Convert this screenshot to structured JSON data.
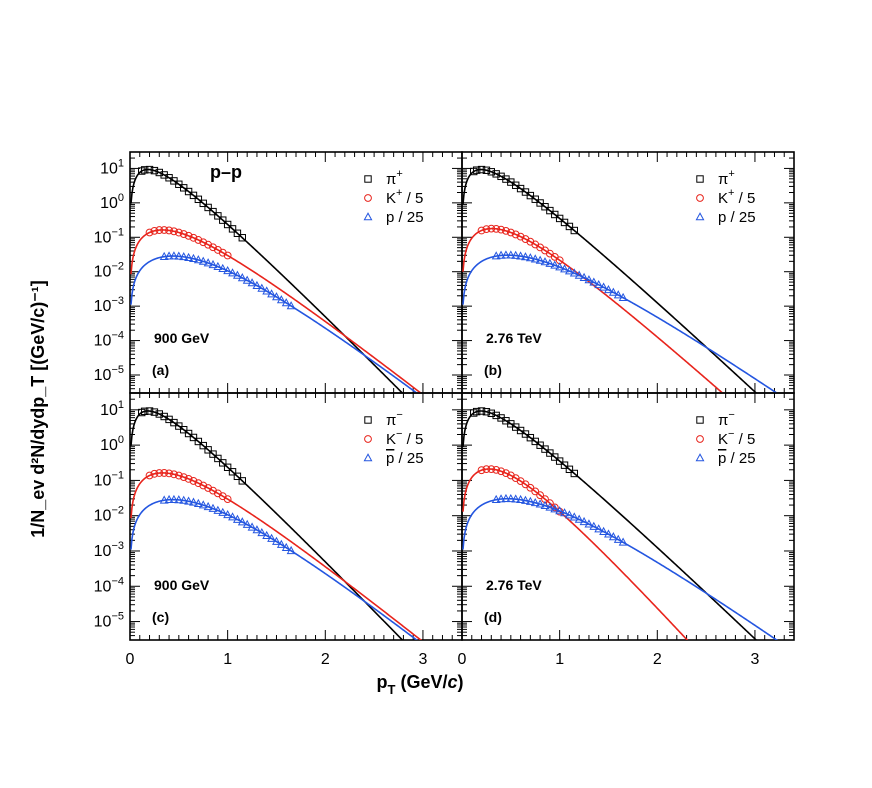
{
  "figure": {
    "system_label": "p–p",
    "x_axis_title": "p",
    "x_axis_title_sub": "T",
    "x_axis_title_unit_open": " (GeV/",
    "x_axis_title_unit_c": "c",
    "x_axis_title_unit_close": ")",
    "y_axis_title": "1/N_ev d²N/dydp_T [(GeV/c)⁻¹]",
    "x_tick_labels": [
      "0",
      "1",
      "2",
      "3"
    ],
    "y_tick_labels": [
      {
        "base": "10",
        "exp": "1"
      },
      {
        "base": "10",
        "exp": "0"
      },
      {
        "base": "10",
        "exp": "−1"
      },
      {
        "base": "10",
        "exp": "−2"
      },
      {
        "base": "10",
        "exp": "−3"
      },
      {
        "base": "10",
        "exp": "−4"
      },
      {
        "base": "10",
        "exp": "−5"
      }
    ]
  },
  "colors": {
    "pion": "#000000",
    "kaon": "#e8241c",
    "proton": "#2456e0",
    "axis": "#000000"
  },
  "chart_data": [
    {
      "type": "scatter",
      "panel": "(a)",
      "energy": "900 GeV",
      "xlabel": "p_T (GeV/c)",
      "ylabel": "1/N_ev d²N/dydp_T [(GeV/c)^-1]",
      "xlim": [
        0,
        3.4
      ],
      "ylim": [
        3e-06,
        30
      ],
      "yscale": "log",
      "legend": [
        {
          "symbol": "square",
          "particle": "π",
          "charge": "+",
          "scale": "",
          "bar": false
        },
        {
          "symbol": "circle",
          "particle": "K",
          "charge": "+",
          "scale": " / 5",
          "bar": false
        },
        {
          "symbol": "triangle",
          "particle": "p",
          "charge": "",
          "scale": "  / 25",
          "bar": false
        }
      ],
      "series": [
        {
          "name": "pi+",
          "symbol": "square",
          "color": "pion",
          "fit_params": {
            "A": 95,
            "T": 0.145,
            "m": 0.1396
          },
          "fit_x_max": 3.4,
          "x": [
            0.12,
            0.15,
            0.2,
            0.25,
            0.3,
            0.35,
            0.4,
            0.45,
            0.5,
            0.55,
            0.6,
            0.65,
            0.7,
            0.75,
            0.8,
            0.85,
            0.9,
            0.95,
            1.0,
            1.05,
            1.1,
            1.15
          ]
        },
        {
          "name": "K+/5",
          "symbol": "circle",
          "color": "kaon",
          "fit_params": {
            "A": 0.85,
            "T": 0.185,
            "m": 0.4937
          },
          "fit_x_max": 3.4,
          "x": [
            0.2,
            0.25,
            0.3,
            0.35,
            0.4,
            0.45,
            0.5,
            0.55,
            0.6,
            0.65,
            0.7,
            0.75,
            0.8,
            0.85,
            0.9,
            0.95,
            1.0
          ]
        },
        {
          "name": "p/25",
          "symbol": "triangle",
          "color": "proton",
          "fit_params": {
            "A": 0.11,
            "T": 0.185,
            "m": 0.9383
          },
          "fit_x_max": 3.4,
          "x": [
            0.35,
            0.4,
            0.45,
            0.5,
            0.55,
            0.6,
            0.65,
            0.7,
            0.75,
            0.8,
            0.85,
            0.9,
            0.95,
            1.0,
            1.05,
            1.1,
            1.15,
            1.2,
            1.25,
            1.3,
            1.35,
            1.4,
            1.45,
            1.5,
            1.55,
            1.6,
            1.65
          ]
        }
      ]
    },
    {
      "type": "scatter",
      "panel": "(b)",
      "energy": "2.76 TeV",
      "xlim": [
        0,
        3.4
      ],
      "ylim": [
        3e-06,
        30
      ],
      "yscale": "log",
      "legend": [
        {
          "symbol": "square",
          "particle": "π",
          "charge": "+",
          "scale": "",
          "bar": false
        },
        {
          "symbol": "circle",
          "particle": "K",
          "charge": "+",
          "scale": " / 5",
          "bar": false
        },
        {
          "symbol": "triangle",
          "particle": "p",
          "charge": "",
          "scale": "  / 25",
          "bar": false
        }
      ],
      "series": [
        {
          "name": "pi+",
          "symbol": "square",
          "color": "pion",
          "fit_params": {
            "A": 90,
            "T": 0.157,
            "m": 0.1396
          },
          "fit_x_max": 3.4,
          "x": [
            0.12,
            0.15,
            0.2,
            0.25,
            0.3,
            0.35,
            0.4,
            0.45,
            0.5,
            0.55,
            0.6,
            0.65,
            0.7,
            0.75,
            0.8,
            0.85,
            0.9,
            0.95,
            1.0,
            1.05,
            1.1,
            1.15
          ]
        },
        {
          "name": "K+/5",
          "symbol": "circle",
          "color": "kaon",
          "fit_params": {
            "A": 1.0,
            "T": 0.162,
            "m": 0.4937
          },
          "fit_x_max": 3.4,
          "x": [
            0.2,
            0.25,
            0.3,
            0.35,
            0.4,
            0.45,
            0.5,
            0.55,
            0.6,
            0.65,
            0.7,
            0.75,
            0.8,
            0.85,
            0.9,
            0.95,
            1.0
          ]
        },
        {
          "name": "p/25",
          "symbol": "triangle",
          "color": "proton",
          "fit_params": {
            "A": 0.11,
            "T": 0.207,
            "m": 0.9383
          },
          "fit_x_max": 3.4,
          "x": [
            0.35,
            0.4,
            0.45,
            0.5,
            0.55,
            0.6,
            0.65,
            0.7,
            0.75,
            0.8,
            0.85,
            0.9,
            0.95,
            1.0,
            1.05,
            1.1,
            1.15,
            1.2,
            1.25,
            1.3,
            1.35,
            1.4,
            1.45,
            1.5,
            1.55,
            1.6,
            1.65
          ]
        }
      ]
    },
    {
      "type": "scatter",
      "panel": "(c)",
      "energy": "900 GeV",
      "xlim": [
        0,
        3.4
      ],
      "ylim": [
        3e-06,
        30
      ],
      "yscale": "log",
      "legend": [
        {
          "symbol": "square",
          "particle": "π",
          "charge": "−",
          "scale": "",
          "bar": false
        },
        {
          "symbol": "circle",
          "particle": "K",
          "charge": "−",
          "scale": " / 5",
          "bar": false
        },
        {
          "symbol": "triangle",
          "particle": "p",
          "charge": "",
          "scale": "  / 25",
          "bar": true
        }
      ],
      "series": [
        {
          "name": "pi-",
          "symbol": "square",
          "color": "pion",
          "fit_params": {
            "A": 95,
            "T": 0.145,
            "m": 0.1396
          },
          "fit_x_max": 3.4,
          "x": [
            0.12,
            0.15,
            0.2,
            0.25,
            0.3,
            0.35,
            0.4,
            0.45,
            0.5,
            0.55,
            0.6,
            0.65,
            0.7,
            0.75,
            0.8,
            0.85,
            0.9,
            0.95,
            1.0,
            1.05,
            1.1,
            1.15
          ]
        },
        {
          "name": "K-/5",
          "symbol": "circle",
          "color": "kaon",
          "fit_params": {
            "A": 0.85,
            "T": 0.185,
            "m": 0.4937
          },
          "fit_x_max": 3.4,
          "x": [
            0.2,
            0.25,
            0.3,
            0.35,
            0.4,
            0.45,
            0.5,
            0.55,
            0.6,
            0.65,
            0.7,
            0.75,
            0.8,
            0.85,
            0.9,
            0.95,
            1.0
          ]
        },
        {
          "name": "pbar/25",
          "symbol": "triangle",
          "color": "proton",
          "fit_params": {
            "A": 0.11,
            "T": 0.185,
            "m": 0.9383
          },
          "fit_x_max": 3.4,
          "x": [
            0.35,
            0.4,
            0.45,
            0.5,
            0.55,
            0.6,
            0.65,
            0.7,
            0.75,
            0.8,
            0.85,
            0.9,
            0.95,
            1.0,
            1.05,
            1.1,
            1.15,
            1.2,
            1.25,
            1.3,
            1.35,
            1.4,
            1.45,
            1.5,
            1.55,
            1.6,
            1.65
          ]
        }
      ]
    },
    {
      "type": "scatter",
      "panel": "(d)",
      "energy": "2.76 TeV",
      "xlim": [
        0,
        3.4
      ],
      "ylim": [
        3e-06,
        30
      ],
      "yscale": "log",
      "legend": [
        {
          "symbol": "square",
          "particle": "π",
          "charge": "−",
          "scale": "",
          "bar": false
        },
        {
          "symbol": "circle",
          "particle": "K",
          "charge": "−",
          "scale": " / 5",
          "bar": false
        },
        {
          "symbol": "triangle",
          "particle": "p",
          "charge": "",
          "scale": "  / 25",
          "bar": true
        }
      ],
      "series": [
        {
          "name": "pi-",
          "symbol": "square",
          "color": "pion",
          "fit_params": {
            "A": 90,
            "T": 0.157,
            "m": 0.1396
          },
          "fit_x_max": 3.4,
          "x": [
            0.12,
            0.15,
            0.2,
            0.25,
            0.3,
            0.35,
            0.4,
            0.45,
            0.5,
            0.55,
            0.6,
            0.65,
            0.7,
            0.75,
            0.8,
            0.85,
            0.9,
            0.95,
            1.0,
            1.05,
            1.1,
            1.15
          ]
        },
        {
          "name": "K-/5",
          "symbol": "circle",
          "color": "kaon",
          "fit_params": {
            "A": 1.3,
            "T": 0.135,
            "m": 0.4937
          },
          "fit_x_max": 3.4,
          "x": [
            0.2,
            0.25,
            0.3,
            0.35,
            0.4,
            0.45,
            0.5,
            0.55,
            0.6,
            0.65,
            0.7,
            0.75,
            0.8,
            0.85,
            0.9,
            0.95,
            1.0
          ]
        },
        {
          "name": "pbar/25",
          "symbol": "triangle",
          "color": "proton",
          "fit_params": {
            "A": 0.11,
            "T": 0.207,
            "m": 0.9383
          },
          "fit_x_max": 3.4,
          "x": [
            0.35,
            0.4,
            0.45,
            0.5,
            0.55,
            0.6,
            0.65,
            0.7,
            0.75,
            0.8,
            0.85,
            0.9,
            0.95,
            1.0,
            1.05,
            1.1,
            1.15,
            1.2,
            1.25,
            1.3,
            1.35,
            1.4,
            1.45,
            1.5,
            1.55,
            1.6,
            1.65
          ]
        }
      ]
    }
  ]
}
